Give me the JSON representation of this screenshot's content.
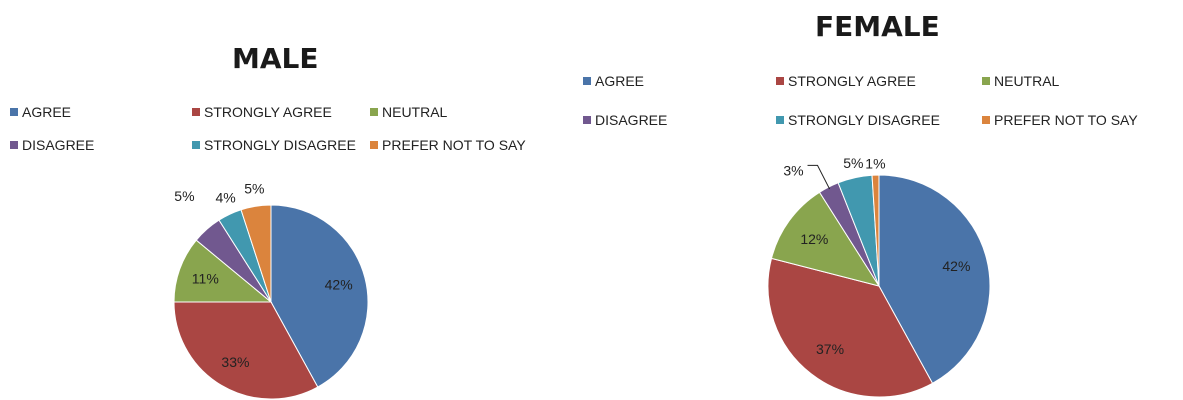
{
  "chart_data": [
    {
      "type": "pie",
      "title": "MALE",
      "categories": [
        "AGREE",
        "STRONGLY AGREE",
        "NEUTRAL",
        "DISAGREE",
        "STRONGLY DISAGREE",
        "PREFER NOT TO SAY"
      ],
      "values": [
        42,
        33,
        11,
        5,
        4,
        5
      ],
      "labels": [
        "42%",
        "33%",
        "11%",
        "5%",
        "4%",
        "5%"
      ],
      "legend_position": "top",
      "colors": [
        "#4A74A9",
        "#AA4643",
        "#89A54E",
        "#71588F",
        "#4198AF",
        "#DB843D"
      ]
    },
    {
      "type": "pie",
      "title": "FEMALE",
      "categories": [
        "AGREE",
        "STRONGLY AGREE",
        "NEUTRAL",
        "DISAGREE",
        "STRONGLY DISAGREE",
        "PREFER NOT TO SAY"
      ],
      "values": [
        42,
        37,
        12,
        3,
        5,
        1
      ],
      "labels": [
        "42%",
        "37%",
        "12%",
        "3%",
        "5%",
        "1%"
      ],
      "legend_position": "top",
      "colors": [
        "#4A74A9",
        "#AA4643",
        "#89A54E",
        "#71588F",
        "#4198AF",
        "#DB843D"
      ]
    }
  ]
}
